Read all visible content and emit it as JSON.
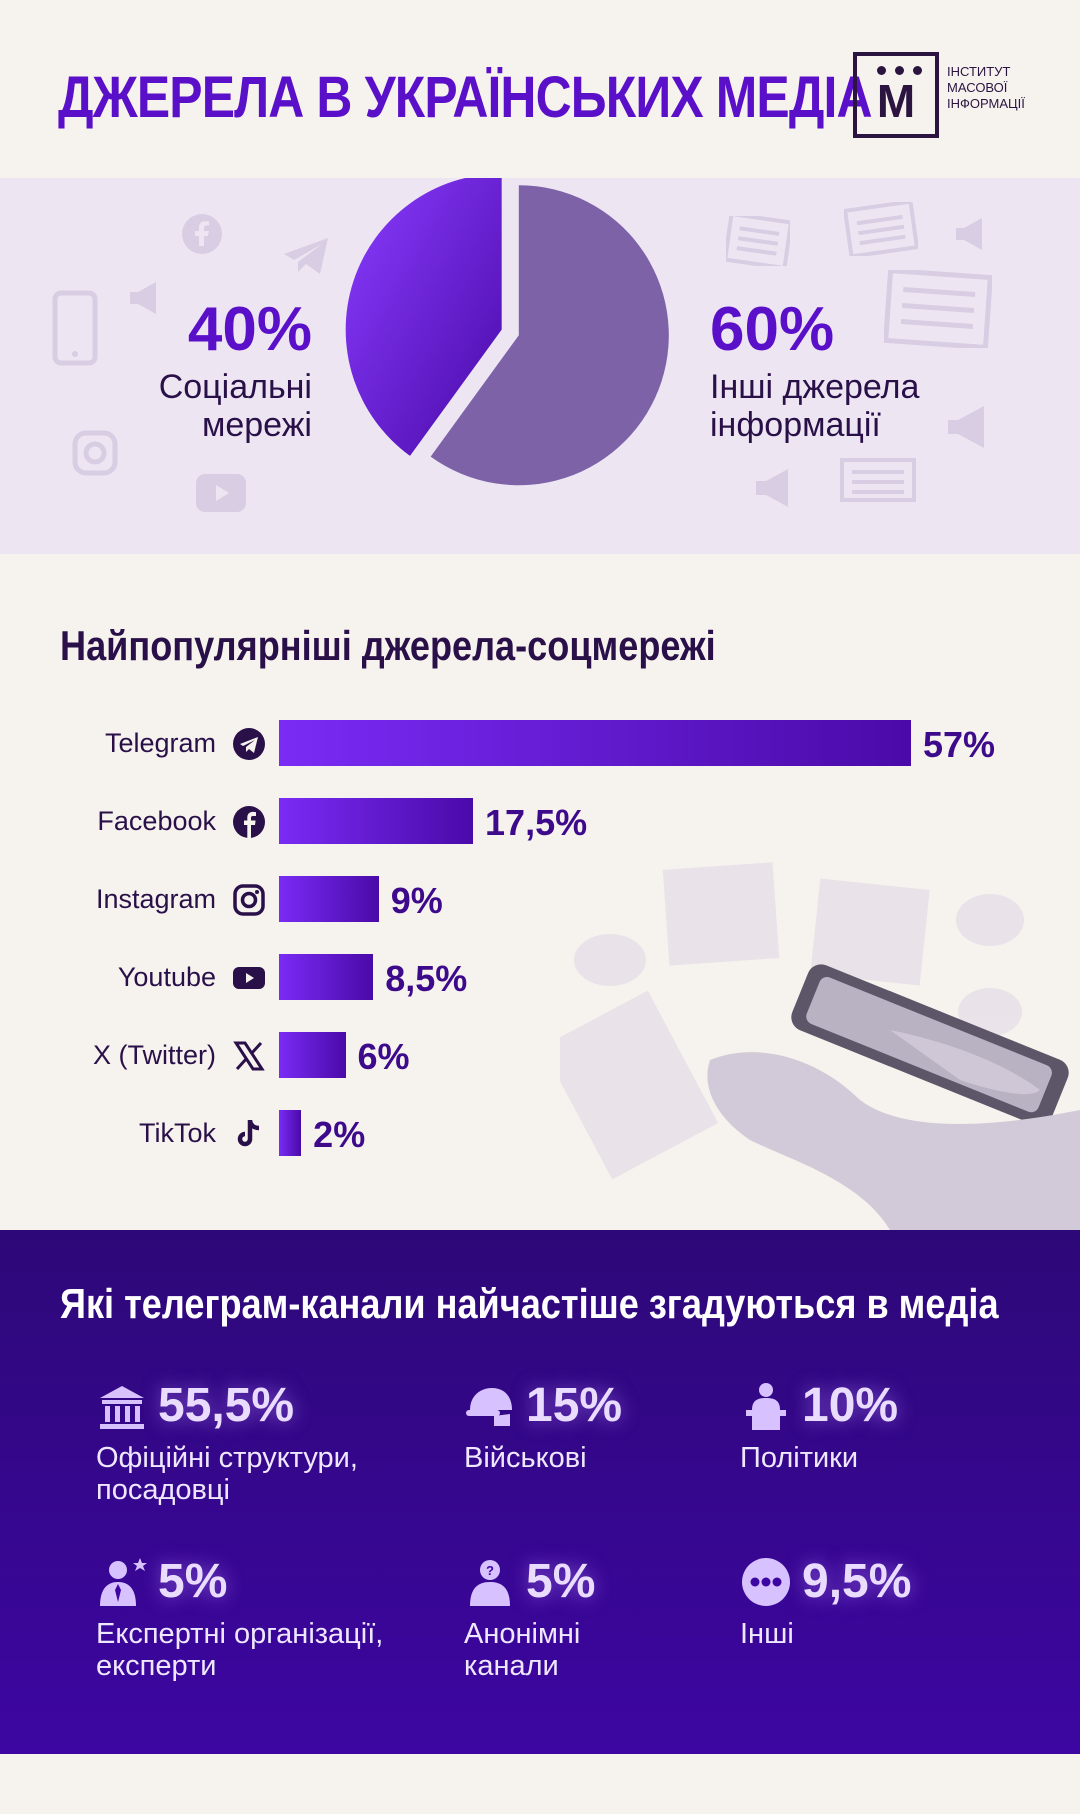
{
  "header": {
    "title": "ДЖЕРЕЛА В УКРАЇНСЬКИХ МЕДІА",
    "logo_letter": "М",
    "logo_text": [
      "ІНСТИТУТ",
      "МАСОВОЇ",
      "ІНФОРМАЦІЇ"
    ]
  },
  "pie": {
    "left_pct": "40%",
    "left_label": [
      "Соціальні",
      "мережі"
    ],
    "right_pct": "60%",
    "right_label": [
      "Інші джерела",
      "інформації"
    ]
  },
  "bars_section": {
    "title": "Найпопулярніші джерела-соцмережі"
  },
  "telegram_section": {
    "title": "Які телеграм-канали найчастіше згадуються в медіа",
    "items": [
      {
        "pct": "55,5%",
        "label": [
          "Офіційні структури,",
          "посадовці"
        ],
        "icon": "government-building-icon"
      },
      {
        "pct": "15%",
        "label": [
          "Військові"
        ],
        "icon": "military-helmet-icon"
      },
      {
        "pct": "10%",
        "label": [
          "Політики"
        ],
        "icon": "politician-podium-icon"
      },
      {
        "pct": "5%",
        "label": [
          "Експертні організації,",
          "експерти"
        ],
        "icon": "expert-icon"
      },
      {
        "pct": "5%",
        "label": [
          "Анонімні",
          "канали"
        ],
        "icon": "anonymous-person-icon"
      },
      {
        "pct": "9,5%",
        "label": [
          "Інші"
        ],
        "icon": "more-dots-icon"
      }
    ]
  },
  "colors": {
    "accent": "#5a0fc8",
    "pie_social": "#6a1ee8",
    "pie_other": "#7d62a8",
    "bar": "#5a0fc8",
    "dark_section": "#3d06a2"
  },
  "chart_data": [
    {
      "type": "pie",
      "slices": [
        {
          "label": "Соціальні мережі",
          "value": 40
        },
        {
          "label": "Інші джерела інформації",
          "value": 60
        }
      ]
    },
    {
      "type": "bar",
      "title": "Найпопулярніші джерела-соцмережі",
      "categories": [
        "Telegram",
        "Facebook",
        "Instagram",
        "Youtube",
        "X (Twitter)",
        "TikTok"
      ],
      "values": [
        57,
        17.5,
        9,
        8.5,
        6,
        2
      ],
      "value_labels": [
        "57%",
        "17,5%",
        "9%",
        "8,5%",
        "6%",
        "2%"
      ],
      "icons": [
        "telegram-icon",
        "facebook-icon",
        "instagram-icon",
        "youtube-icon",
        "x-twitter-icon",
        "tiktok-icon"
      ]
    }
  ]
}
